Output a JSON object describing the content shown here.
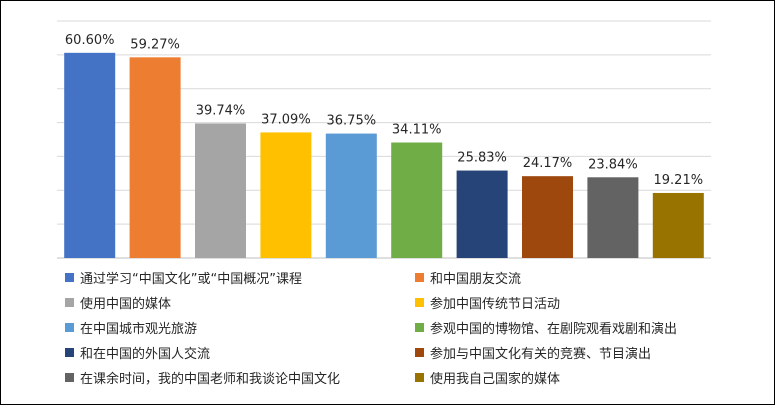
{
  "chart_data": {
    "type": "bar",
    "title": "",
    "xlabel": "",
    "ylabel": "",
    "ylim": [
      0,
      70
    ],
    "grid": true,
    "legend_position": "bottom",
    "categories": [
      "通过学习“中国文化”或“中国概况”课程",
      "和中国朋友交流",
      "使用中国的媒体",
      "参加中国传统节日活动",
      "在中国城市观光旅游",
      "参观中国的博物馆、在剧院观看戏剧和演出",
      "和在中国的外国人交流",
      "参加与中国文化有关的竞赛、节目演出",
      "在课余时间，我的中国老师和我谈论中国文化",
      "使用我自己国家的媒体"
    ],
    "values": [
      60.6,
      59.27,
      39.74,
      37.09,
      36.75,
      34.11,
      25.83,
      24.17,
      23.84,
      19.21
    ],
    "value_labels": [
      "60.60%",
      "59.27%",
      "39.74%",
      "37.09%",
      "36.75%",
      "34.11%",
      "25.83%",
      "24.17%",
      "23.84%",
      "19.21%"
    ],
    "colors": [
      "#4472C4",
      "#ED7D31",
      "#A5A5A5",
      "#FFC000",
      "#5B9BD5",
      "#70AD47",
      "#264478",
      "#9E480E",
      "#636363",
      "#997300"
    ]
  }
}
